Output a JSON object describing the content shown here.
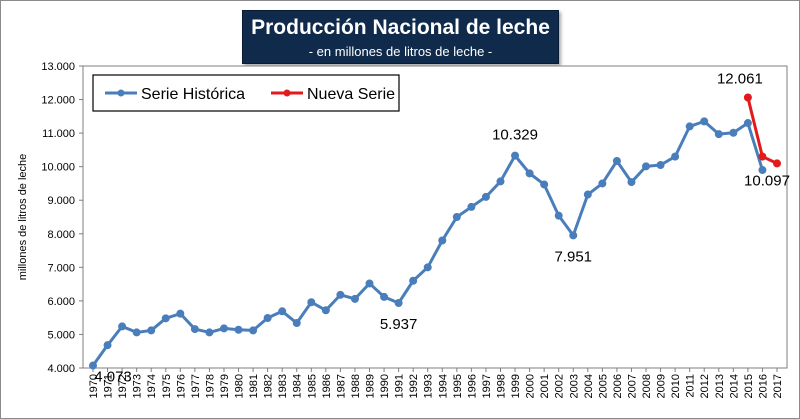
{
  "title": "Producción Nacional de leche",
  "subtitle": "- en millones de litros de leche -",
  "colors": {
    "historica": "#4a7ebb",
    "nueva": "#e31a1c",
    "title_bg": "#0f2a4a"
  },
  "chart_data": {
    "type": "line",
    "title": "Producción Nacional de leche",
    "subtitle": "- en millones de litros de leche -",
    "xlabel": "",
    "ylabel": "millones de litros de leche",
    "ylim": [
      4000,
      13000
    ],
    "yticks": [
      "4.000",
      "5.000",
      "6.000",
      "7.000",
      "8.000",
      "9.000",
      "10.000",
      "11.000",
      "12.000",
      "13.000"
    ],
    "grid": false,
    "legend_position": "top-left",
    "categories": [
      "1970",
      "1971",
      "1972",
      "1973",
      "1974",
      "1975",
      "1976",
      "1977",
      "1978",
      "1979",
      "1980",
      "1981",
      "1982",
      "1983",
      "1984",
      "1985",
      "1986",
      "1987",
      "1988",
      "1989",
      "1990",
      "1991",
      "1992",
      "1993",
      "1994",
      "1995",
      "1996",
      "1997",
      "1998",
      "1999",
      "2000",
      "2001",
      "2002",
      "2003",
      "2004",
      "2005",
      "2006",
      "2007",
      "2008",
      "2009",
      "2010",
      "2011",
      "2012",
      "2013",
      "2014",
      "2015",
      "2016",
      "2017"
    ],
    "series": [
      {
        "name": "Serie Histórica",
        "color": "#4a7ebb",
        "values": [
          4073,
          4680,
          5240,
          5060,
          5120,
          5480,
          5620,
          5160,
          5060,
          5180,
          5140,
          5120,
          5490,
          5690,
          5340,
          5960,
          5720,
          6180,
          6060,
          6520,
          6120,
          5937,
          6600,
          7000,
          7800,
          8500,
          8800,
          9100,
          9560,
          10329,
          9800,
          9470,
          8540,
          7951,
          9170,
          9500,
          10170,
          9540,
          10010,
          10050,
          10300,
          11200,
          11350,
          10970,
          11010,
          11300,
          9900,
          null
        ]
      },
      {
        "name": "Nueva Serie",
        "color": "#e31a1c",
        "values": [
          null,
          null,
          null,
          null,
          null,
          null,
          null,
          null,
          null,
          null,
          null,
          null,
          null,
          null,
          null,
          null,
          null,
          null,
          null,
          null,
          null,
          null,
          null,
          null,
          null,
          null,
          null,
          null,
          null,
          null,
          null,
          null,
          null,
          null,
          null,
          null,
          null,
          null,
          null,
          null,
          null,
          null,
          null,
          null,
          null,
          12061,
          10300,
          10097
        ]
      }
    ],
    "annotations": [
      {
        "text": "4.073",
        "category": "1970",
        "value": 4073
      },
      {
        "text": "5.937",
        "category": "1991",
        "value": 5937
      },
      {
        "text": "10.329",
        "category": "1999",
        "value": 10329
      },
      {
        "text": "7.951",
        "category": "2003",
        "value": 7951
      },
      {
        "text": "12.061",
        "category": "2015",
        "value": 12061
      },
      {
        "text": "10.097",
        "category": "2017",
        "value": 10097
      }
    ]
  }
}
